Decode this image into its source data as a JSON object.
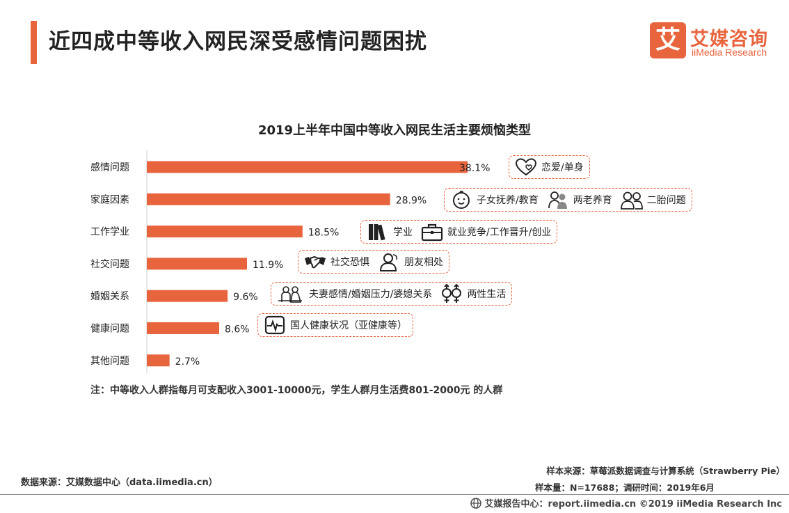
{
  "page": {
    "title": "近四成中等收入网民深受感情问题困扰"
  },
  "logo": {
    "mark": "艾",
    "name_cn": "艾媒咨询",
    "name_en": "iiMedia Research"
  },
  "chart_data": {
    "type": "bar",
    "orientation": "horizontal",
    "title": "2019上半年中国中等收入网民生活主要烦恼类型",
    "categories": [
      "感情问题",
      "家庭因素",
      "工作学业",
      "社交问题",
      "婚姻关系",
      "健康问题",
      "其他问题"
    ],
    "values": [
      38.1,
      28.9,
      18.5,
      11.9,
      9.6,
      8.6,
      2.7
    ],
    "value_labels": [
      "38.1%",
      "28.9%",
      "18.5%",
      "11.9%",
      "9.6%",
      "8.6%",
      "2.7%"
    ],
    "unit": "%",
    "bar_color": "#e8643c",
    "xlim": [
      0,
      40
    ],
    "grid": false,
    "legend": "none"
  },
  "tags": [
    {
      "category": "感情问题",
      "items": [
        {
          "icon": "heart-icon",
          "text": "恋爱/单身"
        }
      ]
    },
    {
      "category": "家庭因素",
      "items": [
        {
          "icon": "baby-face-icon",
          "text": "子女抚养/教育"
        },
        {
          "icon": "elderly-couple-icon",
          "text": "两老养育"
        },
        {
          "icon": "two-people-icon",
          "text": "二胎问题"
        }
      ]
    },
    {
      "category": "工作学业",
      "items": [
        {
          "icon": "books-icon",
          "text": "学业"
        },
        {
          "icon": "briefcase-icon",
          "text": "就业竞争/工作晋升/创业"
        }
      ]
    },
    {
      "category": "社交问题",
      "items": [
        {
          "icon": "handshake-icon",
          "text": "社交恐惧"
        },
        {
          "icon": "friends-icon",
          "text": "朋友相处"
        }
      ]
    },
    {
      "category": "婚姻关系",
      "items": [
        {
          "icon": "couple-icon",
          "text": "夫妻感情/婚姻压力/婆媳关系"
        },
        {
          "icon": "gender-icon",
          "text": "两性生活"
        }
      ]
    },
    {
      "category": "健康问题",
      "items": [
        {
          "icon": "heartbeat-monitor-icon",
          "text": "国人健康状况（亚健康等）"
        }
      ]
    }
  ],
  "note": "注：中等收入人群指每月可支配收入3001-10000元，学生人群月生活费801-2000元 的人群",
  "source": {
    "data_source": "数据来源：艾媒数据中心（data.iimedia.cn）",
    "sample_source": "样本来源：草莓派数据调查与计算系统（Strawberry Pie）",
    "sample_size": "样本量：N=17688；调研时间：2019年6月"
  },
  "footer": {
    "text": "艾媒报告中心：report.iimedia.cn  ©2019  iiMedia Research  Inc"
  },
  "colors": {
    "accent": "#e8643c"
  }
}
